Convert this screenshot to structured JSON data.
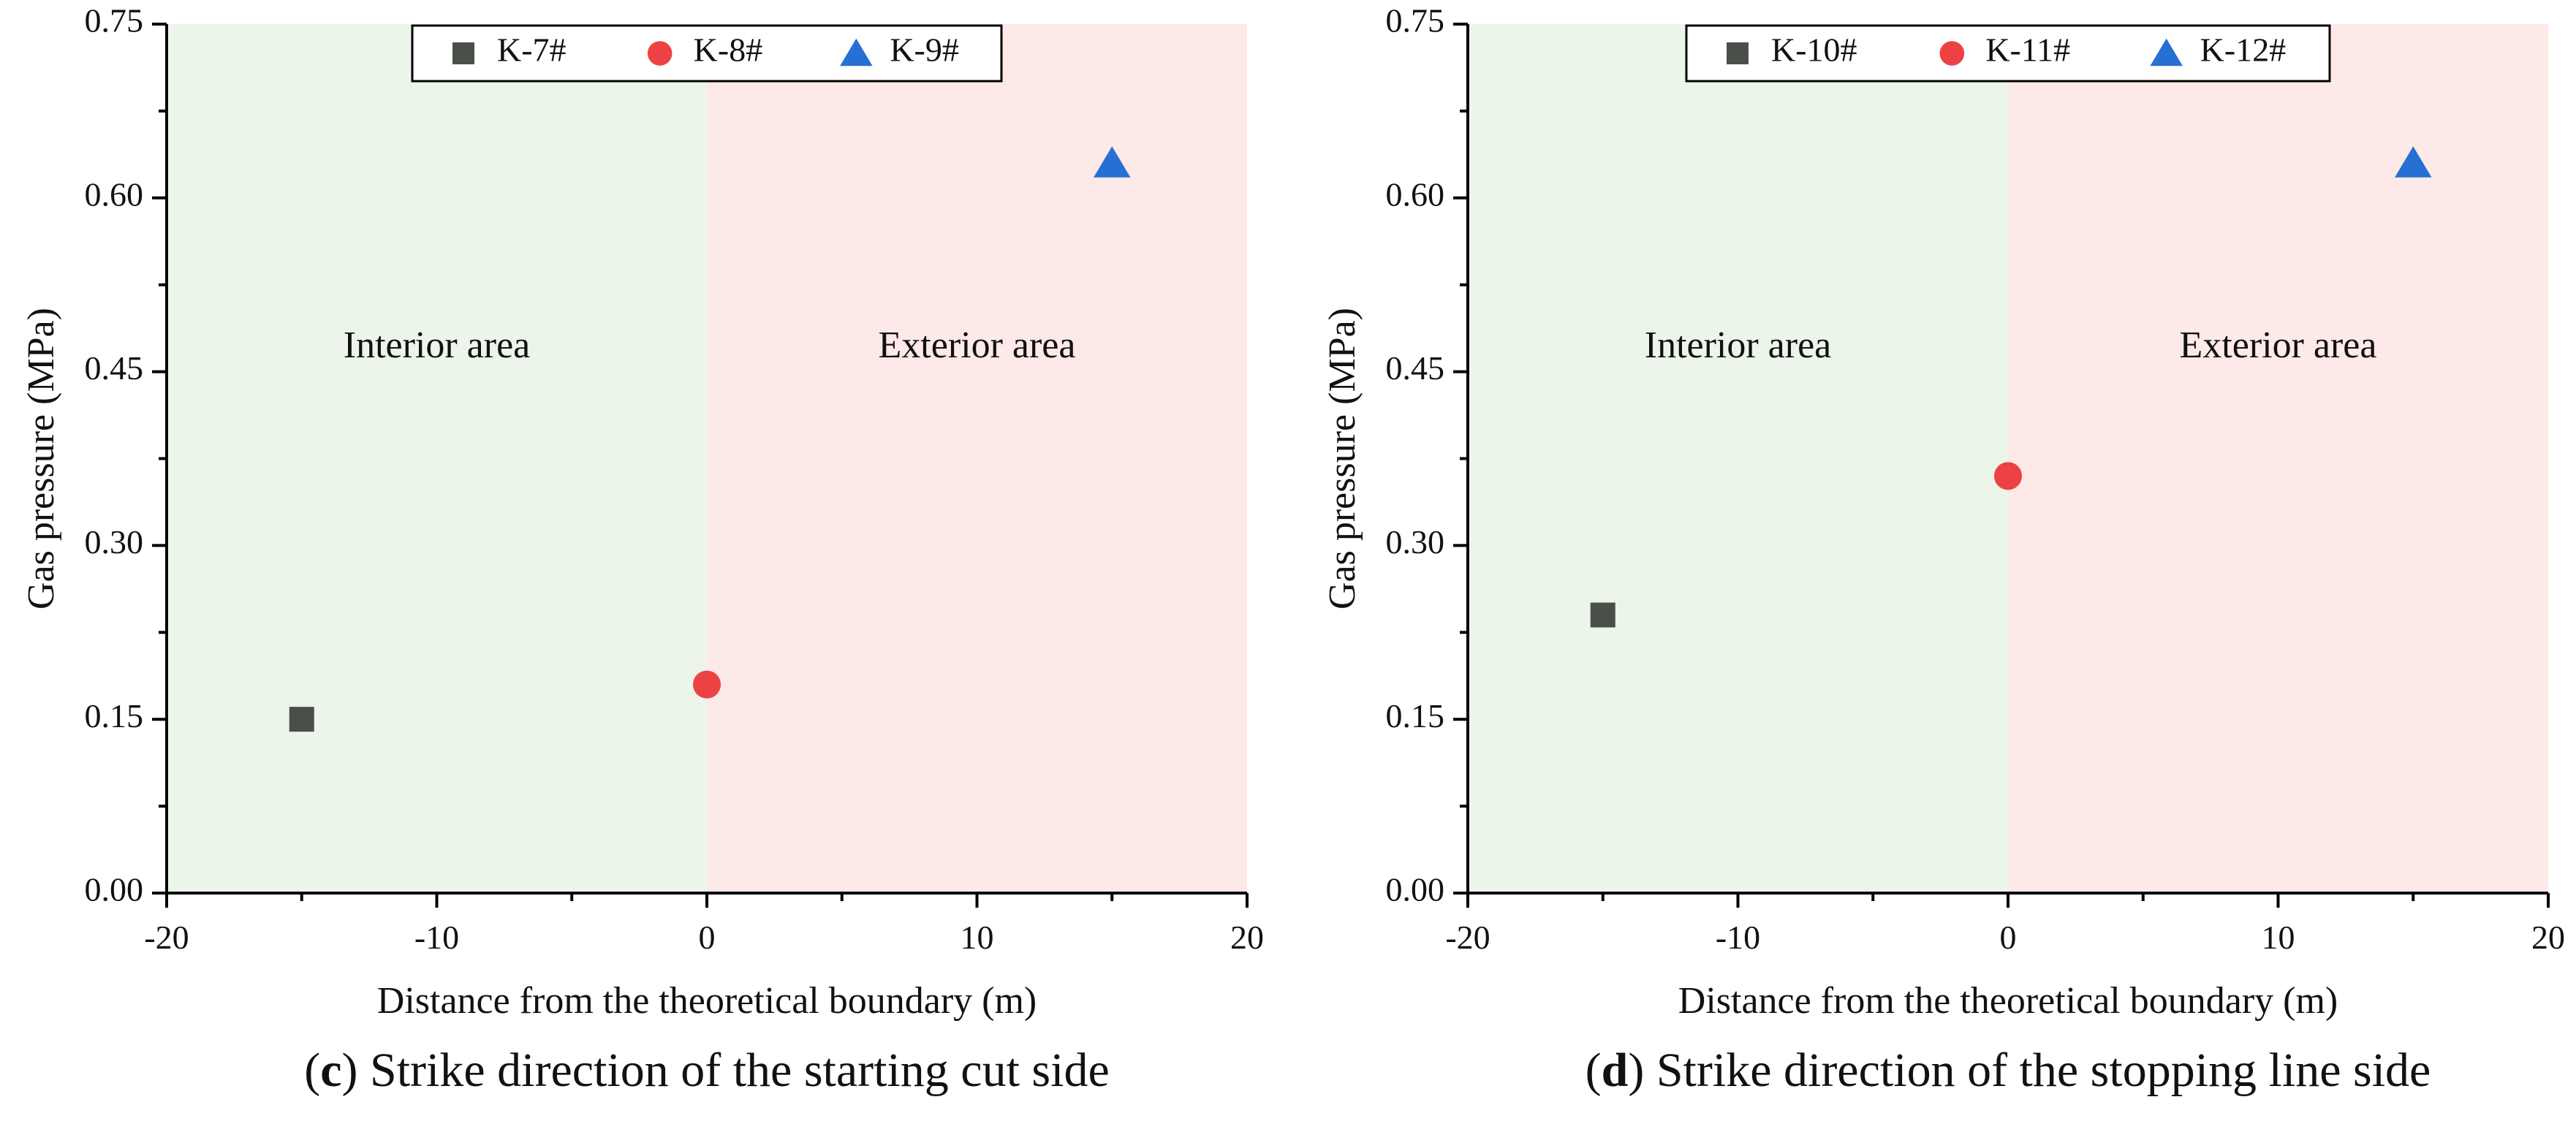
{
  "chart_data": [
    {
      "type": "scatter",
      "panel_letter": "c",
      "caption": "Strike direction of the starting cut side",
      "xlabel": "Distance from the theoretical boundary (m)",
      "ylabel": "Gas pressure (MPa)",
      "xlim": [
        -20,
        20
      ],
      "ylim": [
        0,
        0.75
      ],
      "xticks": [
        "-20",
        "-10",
        "0",
        "10",
        "20"
      ],
      "yticks": [
        "0.00",
        "0.15",
        "0.30",
        "0.45",
        "0.60",
        "0.75"
      ],
      "regions": [
        {
          "label": "Interior area",
          "x_range": [
            -20,
            0
          ],
          "color": "#ebf5e9"
        },
        {
          "label": "Exterior area",
          "x_range": [
            0,
            20
          ],
          "color": "#fde9e8"
        }
      ],
      "series": [
        {
          "name": "K-7#",
          "marker": "square",
          "color": "#4a5049",
          "x": [
            -15
          ],
          "y": [
            0.15
          ]
        },
        {
          "name": "K-8#",
          "marker": "circle",
          "color": "#ec4244",
          "x": [
            0
          ],
          "y": [
            0.18
          ]
        },
        {
          "name": "K-9#",
          "marker": "triangle",
          "color": "#2670d4",
          "x": [
            15
          ],
          "y": [
            0.63
          ]
        }
      ],
      "legend": "top-center"
    },
    {
      "type": "scatter",
      "panel_letter": "d",
      "caption": "Strike direction of the stopping line side",
      "xlabel": "Distance from the theoretical boundary (m)",
      "ylabel": "Gas pressure (MPa)",
      "xlim": [
        -20,
        20
      ],
      "ylim": [
        0,
        0.75
      ],
      "xticks": [
        "-20",
        "-10",
        "0",
        "10",
        "20"
      ],
      "yticks": [
        "0.00",
        "0.15",
        "0.30",
        "0.45",
        "0.60",
        "0.75"
      ],
      "regions": [
        {
          "label": "Interior area",
          "x_range": [
            -20,
            0
          ],
          "color": "#ebf5e9"
        },
        {
          "label": "Exterior area",
          "x_range": [
            0,
            20
          ],
          "color": "#fde9e8"
        }
      ],
      "series": [
        {
          "name": "K-10#",
          "marker": "square",
          "color": "#4a5049",
          "x": [
            -15
          ],
          "y": [
            0.24
          ]
        },
        {
          "name": "K-11#",
          "marker": "circle",
          "color": "#ec4244",
          "x": [
            0
          ],
          "y": [
            0.36
          ]
        },
        {
          "name": "K-12#",
          "marker": "triangle",
          "color": "#2670d4",
          "x": [
            15
          ],
          "y": [
            0.63
          ]
        }
      ],
      "legend": "top-center"
    }
  ]
}
